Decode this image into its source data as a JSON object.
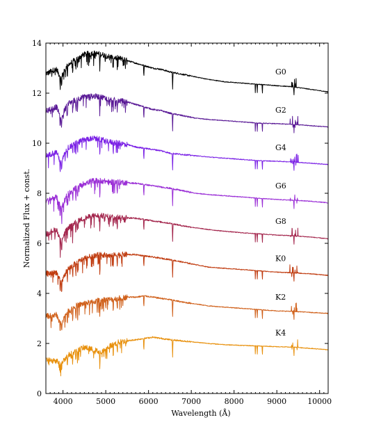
{
  "chart_data": {
    "type": "line",
    "title": "",
    "xlabel": "Wavelength (Å)",
    "ylabel": "Normalized Flux + const.",
    "xlim": [
      3600,
      10200
    ],
    "ylim": [
      0,
      14
    ],
    "xticks": [
      4000,
      5000,
      6000,
      7000,
      8000,
      9000,
      10000
    ],
    "yticks": [
      0,
      2,
      4,
      6,
      8,
      10,
      12,
      14
    ],
    "grid": false,
    "legend": "none",
    "x": [
      3650,
      3750,
      3850,
      3950,
      4100,
      4300,
      4500,
      4700,
      4900,
      5100,
      5300,
      5500,
      5700,
      5900,
      6100,
      6300,
      6500,
      6800,
      7100,
      7400,
      7800,
      8200,
      8600,
      9000,
      9400,
      9800,
      10200
    ],
    "series": [
      {
        "name": "G0",
        "color": "#000000",
        "values": [
          12.8,
          12.9,
          12.95,
          12.6,
          13.1,
          13.35,
          13.55,
          13.6,
          13.55,
          13.45,
          13.4,
          13.3,
          13.2,
          13.1,
          13.0,
          12.95,
          12.85,
          12.75,
          12.65,
          12.55,
          12.45,
          12.4,
          12.35,
          12.3,
          12.25,
          12.15,
          12.05
        ]
      },
      {
        "name": "G2",
        "color": "#5a1a96",
        "values": [
          11.3,
          11.4,
          11.45,
          11.0,
          11.55,
          11.75,
          11.85,
          11.88,
          11.85,
          11.75,
          11.7,
          11.65,
          11.55,
          11.45,
          11.35,
          11.3,
          11.2,
          11.1,
          11.0,
          10.95,
          10.9,
          10.85,
          10.8,
          10.78,
          10.75,
          10.7,
          10.65
        ]
      },
      {
        "name": "G4",
        "color": "#7b22e6",
        "values": [
          9.5,
          9.6,
          9.65,
          9.2,
          9.8,
          10.0,
          10.15,
          10.2,
          10.15,
          10.05,
          10.0,
          9.95,
          9.85,
          9.8,
          9.75,
          9.7,
          9.6,
          9.55,
          9.5,
          9.45,
          9.4,
          9.35,
          9.3,
          9.28,
          9.25,
          9.2,
          9.15
        ]
      },
      {
        "name": "G6",
        "color": "#9a2ed6",
        "values": [
          7.7,
          7.8,
          7.85,
          7.4,
          7.95,
          8.2,
          8.4,
          8.5,
          8.5,
          8.45,
          8.45,
          8.42,
          8.4,
          8.35,
          8.3,
          8.25,
          8.2,
          8.1,
          8.0,
          7.95,
          7.9,
          7.85,
          7.8,
          7.75,
          7.72,
          7.68,
          7.62
        ]
      },
      {
        "name": "G8",
        "color": "#a3254c",
        "values": [
          6.4,
          6.5,
          6.55,
          6.1,
          6.6,
          6.85,
          7.0,
          7.1,
          7.1,
          7.05,
          7.05,
          7.02,
          7.0,
          6.95,
          6.9,
          6.85,
          6.8,
          6.7,
          6.62,
          6.55,
          6.48,
          6.42,
          6.38,
          6.33,
          6.3,
          6.25,
          6.18
        ]
      },
      {
        "name": "K0",
        "color": "#c03c10",
        "values": [
          4.8,
          4.8,
          4.85,
          4.4,
          4.95,
          5.2,
          5.4,
          5.5,
          5.55,
          5.5,
          5.55,
          5.55,
          5.55,
          5.5,
          5.45,
          5.4,
          5.35,
          5.25,
          5.15,
          5.05,
          5.0,
          4.95,
          4.9,
          4.85,
          4.82,
          4.78,
          4.72
        ]
      },
      {
        "name": "K2",
        "color": "#d0601a",
        "values": [
          3.1,
          3.1,
          3.15,
          2.8,
          3.25,
          3.5,
          3.6,
          3.65,
          3.75,
          3.75,
          3.8,
          3.85,
          3.85,
          3.9,
          3.85,
          3.8,
          3.75,
          3.65,
          3.58,
          3.5,
          3.45,
          3.4,
          3.35,
          3.3,
          3.28,
          3.24,
          3.2
        ]
      },
      {
        "name": "K4",
        "color": "#e8900c",
        "values": [
          1.35,
          1.3,
          1.3,
          1.2,
          1.5,
          1.7,
          1.85,
          1.75,
          1.65,
          1.9,
          2.05,
          2.1,
          2.15,
          2.2,
          2.25,
          2.2,
          2.15,
          2.1,
          2.05,
          2.0,
          1.95,
          1.92,
          1.9,
          1.87,
          1.85,
          1.8,
          1.75
        ]
      }
    ],
    "absorption_lines": [
      3934,
      3969,
      4102,
      4227,
      4300,
      4340,
      4861,
      5175,
      5270,
      5890,
      6563,
      8498,
      8542,
      8662,
      9400
    ]
  }
}
